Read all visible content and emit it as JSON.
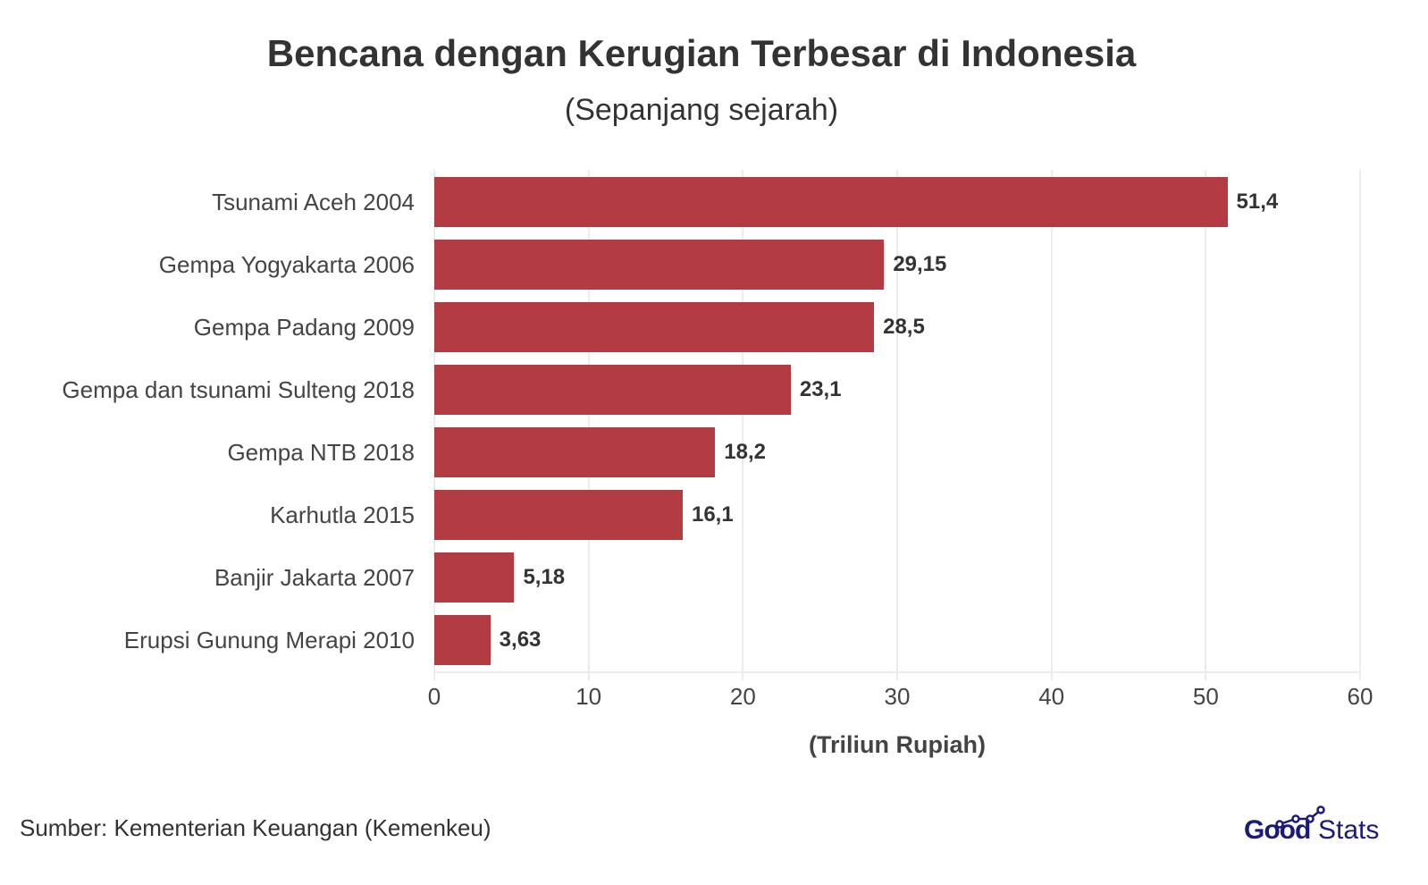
{
  "header": {
    "title": "Bencana dengan Kerugian Terbesar di Indonesia",
    "subtitle": "(Sepanjang sejarah)"
  },
  "footer": {
    "source": "Sumber: Kementerian Keuangan (Kemenkeu)",
    "logo_good": "Good",
    "logo_stats": "Stats"
  },
  "colors": {
    "bar": "#b33c42",
    "logo": "#1a1a7a"
  },
  "chart_data": {
    "type": "bar",
    "orientation": "horizontal",
    "title": "Bencana dengan Kerugian Terbesar di Indonesia",
    "subtitle": "(Sepanjang sejarah)",
    "xlabel": "(Triliun Rupiah)",
    "ylabel": "",
    "xlim": [
      0,
      60
    ],
    "xticks": [
      "0",
      "10",
      "20",
      "30",
      "40",
      "50",
      "60"
    ],
    "grid": true,
    "categories": [
      "Tsunami Aceh 2004",
      "Gempa Yogyakarta 2006",
      "Gempa Padang 2009",
      "Gempa dan tsunami Sulteng 2018",
      "Gempa NTB 2018",
      "Karhutla 2015",
      "Banjir Jakarta 2007",
      "Erupsi Gunung Merapi 2010"
    ],
    "values": [
      51.4,
      29.15,
      28.5,
      23.1,
      18.2,
      16.1,
      5.18,
      3.63
    ],
    "value_labels": [
      "51,4",
      "29,15",
      "28,5",
      "23,1",
      "18,2",
      "16,1",
      "5,18",
      "3,63"
    ],
    "source": "Sumber: Kementerian Keuangan (Kemenkeu)"
  }
}
